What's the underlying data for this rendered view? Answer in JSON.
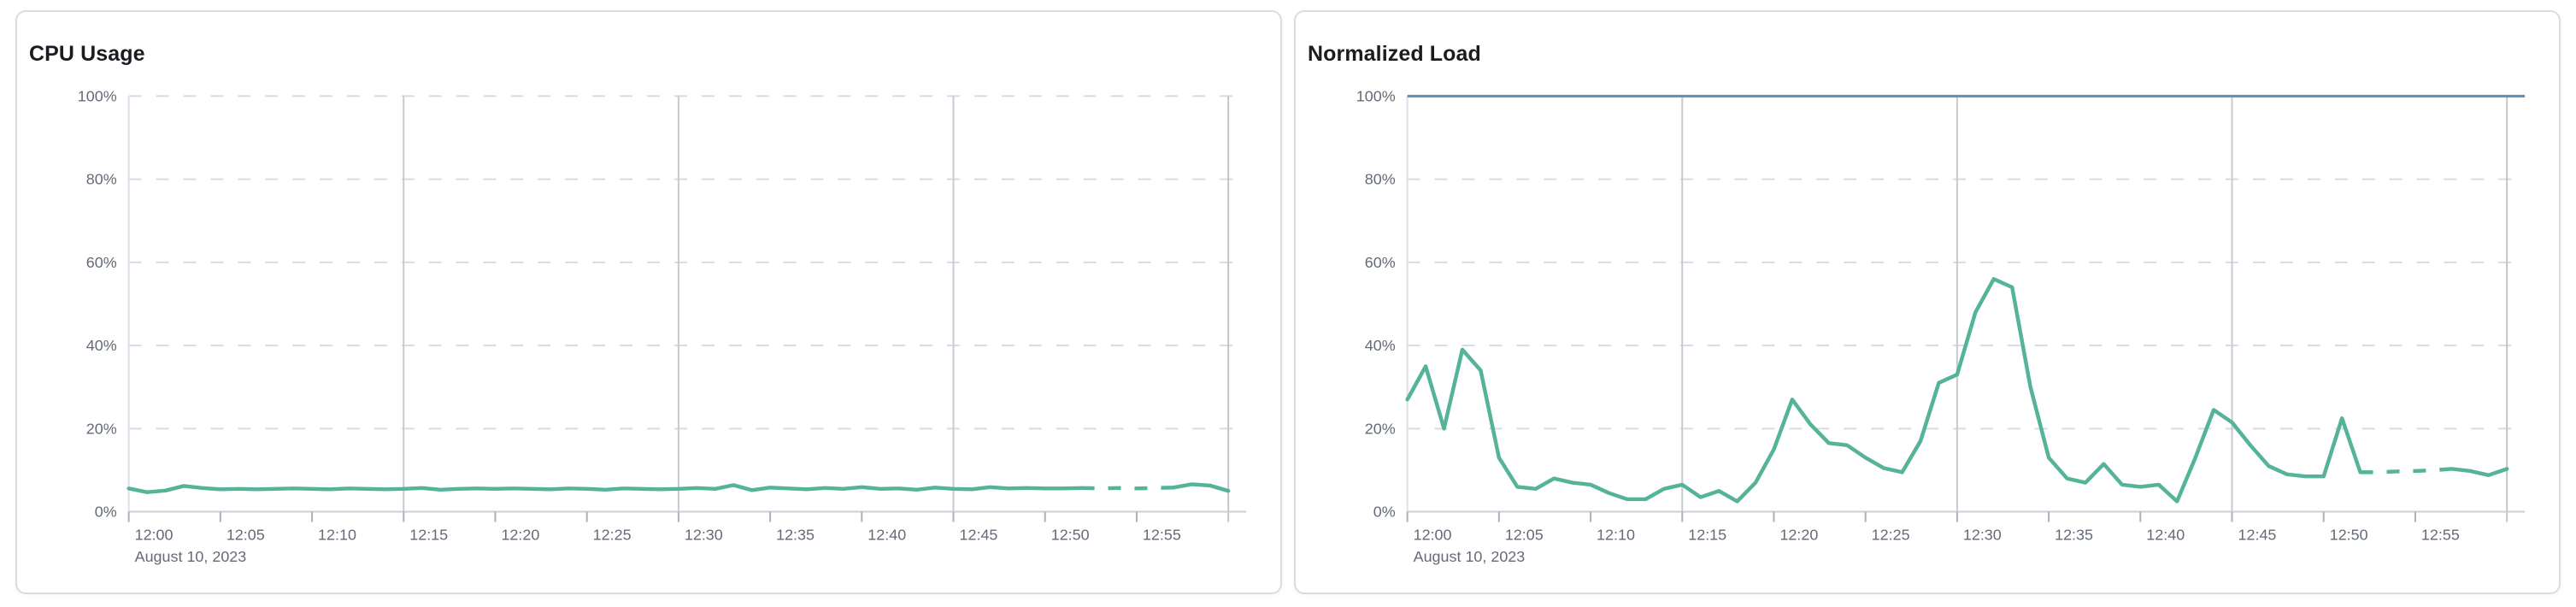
{
  "page": {
    "background": "#ffffff"
  },
  "colors": {
    "series_green": "#54B399",
    "threshold_blue": "#6092C0",
    "axis_text": "#646A77",
    "title_text": "#1A1C21"
  },
  "chart_data": [
    {
      "type": "line",
      "title": "CPU Usage",
      "x_axis": {
        "date_label": "August 10, 2023",
        "tick_labels": [
          "12:00",
          "12:05",
          "12:10",
          "12:15",
          "12:20",
          "12:25",
          "12:30",
          "12:35",
          "12:40",
          "12:45",
          "12:50",
          "12:55"
        ],
        "tick_minutes": [
          0,
          5,
          10,
          15,
          20,
          25,
          30,
          35,
          40,
          45,
          50,
          55
        ],
        "major_gridline_minutes": [
          15,
          30,
          45,
          60
        ],
        "domain_minutes": [
          0,
          60
        ]
      },
      "y_axis": {
        "tick_labels": [
          "0%",
          "20%",
          "40%",
          "60%",
          "80%",
          "100%"
        ],
        "tick_values": [
          0,
          20,
          40,
          60,
          80,
          100
        ],
        "lim": [
          0,
          100
        ]
      },
      "series": [
        {
          "name": "cpu-usage",
          "color": "#54B399",
          "x_step_minutes": 1,
          "values": [
            5.6,
            4.7,
            5.1,
            6.2,
            5.7,
            5.4,
            5.5,
            5.4,
            5.5,
            5.6,
            5.5,
            5.4,
            5.6,
            5.5,
            5.4,
            5.5,
            5.7,
            5.3,
            5.5,
            5.6,
            5.5,
            5.6,
            5.5,
            5.4,
            5.6,
            5.5,
            5.3,
            5.6,
            5.5,
            5.4,
            5.5,
            5.7,
            5.5,
            6.4,
            5.2,
            5.8,
            5.6,
            5.4,
            5.7,
            5.5,
            5.9,
            5.5,
            5.6,
            5.3,
            5.8,
            5.5,
            5.4,
            5.9,
            5.6,
            5.7,
            5.6,
            5.6,
            5.7,
            5.6,
            5.7,
            5.6,
            5.7,
            5.8,
            6.6,
            6.3,
            5.0
          ],
          "dashed_minutes": [
            52,
            57
          ]
        }
      ],
      "threshold": null,
      "legend": "none",
      "grid": "horizontal-dashed, vertical-15min"
    },
    {
      "type": "line",
      "title": "Normalized Load",
      "x_axis": {
        "date_label": "August 10, 2023",
        "tick_labels": [
          "12:00",
          "12:05",
          "12:10",
          "12:15",
          "12:20",
          "12:25",
          "12:30",
          "12:35",
          "12:40",
          "12:45",
          "12:50",
          "12:55"
        ],
        "tick_minutes": [
          0,
          5,
          10,
          15,
          20,
          25,
          30,
          35,
          40,
          45,
          50,
          55
        ],
        "major_gridline_minutes": [
          15,
          30,
          45,
          60
        ],
        "domain_minutes": [
          0,
          60
        ]
      },
      "y_axis": {
        "tick_labels": [
          "0%",
          "20%",
          "40%",
          "60%",
          "80%",
          "100%"
        ],
        "tick_values": [
          0,
          20,
          40,
          60,
          80,
          100
        ],
        "lim": [
          0,
          100
        ]
      },
      "series": [
        {
          "name": "normalized-load",
          "color": "#54B399",
          "x_step_minutes": 1,
          "values": [
            27,
            35,
            20,
            39,
            34,
            13,
            6,
            5.5,
            8,
            7,
            6.5,
            4.5,
            3,
            3,
            5.5,
            6.5,
            3.5,
            5,
            2.5,
            7,
            15,
            27,
            21,
            16.5,
            16,
            13,
            10.5,
            9.5,
            17,
            31,
            33,
            48,
            56,
            54,
            30,
            13,
            8,
            7,
            11.5,
            6.5,
            6,
            6.5,
            2.5,
            13,
            24.5,
            21.5,
            16,
            11,
            9,
            8.5,
            8.5,
            22.5,
            9.5,
            9.5,
            9.7,
            9.8,
            10,
            10.3,
            9.8,
            8.8,
            10.3
          ],
          "dashed_minutes": [
            52,
            57
          ]
        }
      ],
      "threshold": {
        "value": 100,
        "color": "#6092C0"
      },
      "legend": "none",
      "grid": "horizontal-dashed, vertical-15min"
    }
  ]
}
